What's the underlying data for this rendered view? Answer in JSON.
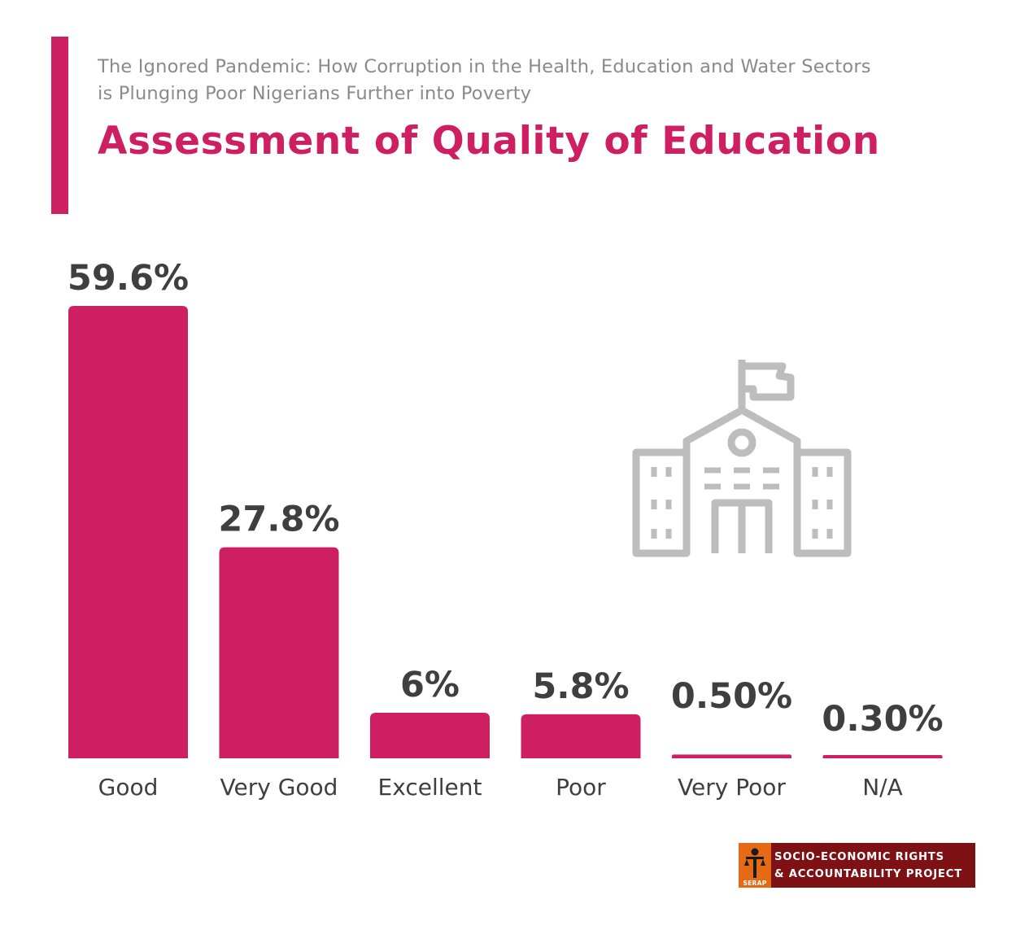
{
  "header": {
    "subtitle_line1": "The Ignored Pandemic: How Corruption in the Health, Education and Water Sectors",
    "subtitle_line2": "is Plunging Poor Nigerians Further into Poverty",
    "title": "Assessment of Quality of Education"
  },
  "colors": {
    "accent": "#cf1f63",
    "value_label": "#3f3f3f",
    "category_label": "#3f3f3f",
    "icon": "#bdbdbd",
    "logo_bg": "#7e1114",
    "logo_mark": "#e56a16"
  },
  "icons": {
    "school": "school-building-icon",
    "logo": "serap-logo-icon"
  },
  "chart_data": {
    "type": "bar",
    "categories": [
      "Good",
      "Very Good",
      "Excellent",
      "Poor",
      "Very Poor",
      "N/A"
    ],
    "values": [
      59.6,
      27.8,
      6,
      5.8,
      0.5,
      0.3
    ],
    "value_labels": [
      "59.6%",
      "27.8%",
      "6%",
      "5.8%",
      "0.50%",
      "0.30%"
    ],
    "title": "Assessment of Quality of Education",
    "xlabel": "",
    "ylabel": "",
    "ylim": [
      0,
      59.6
    ],
    "grid": false,
    "legend": "none"
  },
  "logo": {
    "abbr": "SERAP",
    "line1": "SOCIO-ECONOMIC RIGHTS",
    "line2": "& ACCOUNTABILITY PROJECT"
  }
}
